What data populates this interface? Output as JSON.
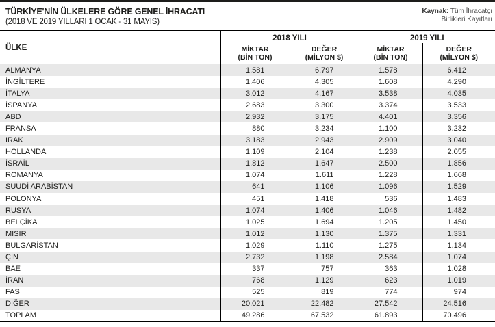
{
  "page": {
    "title": "TÜRKİYE'NİN ÜLKELERE GÖRE GENEL İHRACATI",
    "subtitle": "(2018 VE 2019 YILLARI 1 OCAK - 31 MAYIS)",
    "source_label": "Kaynak:",
    "source_line1": "Tüm İhracatçı",
    "source_line2": "Birlikleri Kayıtları"
  },
  "table": {
    "country_header": "ÜLKE",
    "year_groups": [
      {
        "label": "2018 YILI"
      },
      {
        "label": "2019 YILI"
      }
    ],
    "sub_columns": [
      {
        "label": "MİKTAR",
        "unit": "(BİN TON)"
      },
      {
        "label": "DEĞER",
        "unit": "(MİLYON $)"
      },
      {
        "label": "MİKTAR",
        "unit": "(BİN TON)"
      },
      {
        "label": "DEĞER",
        "unit": "(MİLYON $)"
      }
    ]
  },
  "colors": {
    "rule_black": "#1d1d1b",
    "row_stripe": "#e8e8e8",
    "grid_line": "#000000",
    "text": "#1d1d1b",
    "source_text": "#4d4d4d"
  },
  "chart_data": {
    "type": "table",
    "title": "TÜRKİYE'NİN ÜLKELERE GÖRE GENEL İHRACATI",
    "subtitle": "(2018 VE 2019 YILLARI 1 OCAK - 31 MAYIS)",
    "source": "Kaynak: Tüm İhracatçı Birlikleri Kayıtları",
    "columns": [
      "ÜLKE",
      "2018 MİKTAR (BİN TON)",
      "2018 DEĞER (MİLYON $)",
      "2019 MİKTAR (BİN TON)",
      "2019 DEĞER (MİLYON $)"
    ],
    "number_format": "tr-TR thousands separator '.'",
    "rows": [
      [
        "ALMANYA",
        1581,
        6797,
        1578,
        6412
      ],
      [
        "İNGİLTERE",
        1406,
        4305,
        1608,
        4290
      ],
      [
        "İTALYA",
        3012,
        4167,
        3538,
        4035
      ],
      [
        "İSPANYA",
        2683,
        3300,
        3374,
        3533
      ],
      [
        "ABD",
        2932,
        3175,
        4401,
        3356
      ],
      [
        "FRANSA",
        880,
        3234,
        1100,
        3232
      ],
      [
        "IRAK",
        3183,
        2943,
        2909,
        3040
      ],
      [
        "HOLLANDA",
        1109,
        2104,
        1238,
        2055
      ],
      [
        "İSRAİL",
        1812,
        1647,
        2500,
        1856
      ],
      [
        "ROMANYA",
        1074,
        1611,
        1228,
        1668
      ],
      [
        "SUUDİ ARABİSTAN",
        641,
        1106,
        1096,
        1529
      ],
      [
        "POLONYA",
        451,
        1418,
        536,
        1483
      ],
      [
        "RUSYA",
        1074,
        1406,
        1046,
        1482
      ],
      [
        "BELÇİKA",
        1025,
        1694,
        1205,
        1450
      ],
      [
        "MISIR",
        1012,
        1130,
        1375,
        1331
      ],
      [
        "BULGARİSTAN",
        1029,
        1110,
        1275,
        1134
      ],
      [
        "ÇİN",
        2732,
        1198,
        2584,
        1074
      ],
      [
        "BAE",
        337,
        757,
        363,
        1028
      ],
      [
        "İRAN",
        768,
        1129,
        623,
        1019
      ],
      [
        "FAS",
        525,
        819,
        774,
        974
      ],
      [
        "DİĞER",
        20021,
        22482,
        27542,
        24516
      ],
      [
        "TOPLAM",
        49286,
        67532,
        61893,
        70496
      ]
    ]
  }
}
